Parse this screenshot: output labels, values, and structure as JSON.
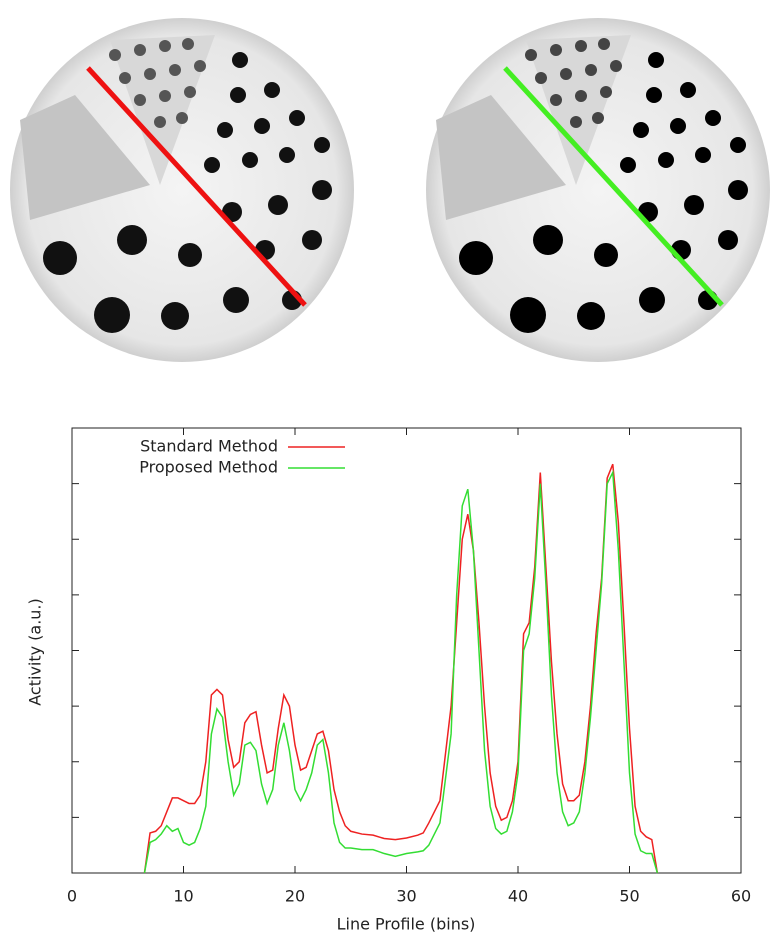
{
  "chart_data": {
    "type": "line",
    "xlabel": "Line Profile (bins)",
    "ylabel": "Activity (a.u.)",
    "xlim": [
      0,
      60
    ],
    "xticks": [
      0,
      10,
      20,
      30,
      40,
      50,
      60
    ],
    "ylim": [
      0,
      8
    ],
    "yticks": [
      1,
      2,
      3,
      4,
      5,
      6,
      7
    ],
    "legend": "top-left",
    "x": [
      6.5,
      7,
      7.5,
      8,
      8.5,
      9,
      9.5,
      10,
      10.5,
      11,
      11.5,
      12,
      12.5,
      13,
      13.5,
      14,
      14.5,
      15,
      15.5,
      16,
      16.5,
      17,
      17.5,
      18,
      18.5,
      19,
      19.5,
      20,
      20.5,
      21,
      21.5,
      22,
      22.5,
      23,
      23.5,
      24,
      24.5,
      25,
      26,
      27,
      28,
      29,
      30,
      31,
      31.5,
      32,
      33,
      34,
      34.5,
      35,
      35.5,
      36,
      36.5,
      37,
      37.5,
      38,
      38.5,
      39,
      39.5,
      40,
      40.5,
      41,
      41.5,
      42,
      42.5,
      43,
      43.5,
      44,
      44.5,
      45,
      45.5,
      46,
      46.5,
      47,
      47.5,
      48,
      48.5,
      49,
      49.5,
      50,
      50.5,
      51,
      51.5,
      52,
      52.5
    ],
    "series": [
      {
        "name": "Standard Method",
        "color": "#ee2222",
        "values": [
          0,
          0.72,
          0.75,
          0.85,
          1.1,
          1.35,
          1.35,
          1.3,
          1.25,
          1.25,
          1.4,
          2.0,
          3.2,
          3.3,
          3.2,
          2.4,
          1.9,
          2.0,
          2.7,
          2.85,
          2.9,
          2.3,
          1.8,
          1.85,
          2.6,
          3.2,
          3.0,
          2.3,
          1.85,
          1.9,
          2.2,
          2.5,
          2.55,
          2.2,
          1.5,
          1.1,
          0.85,
          0.75,
          0.7,
          0.68,
          0.62,
          0.6,
          0.63,
          0.68,
          0.72,
          0.9,
          1.3,
          3.0,
          4.5,
          6.0,
          6.45,
          5.8,
          4.5,
          3.0,
          1.8,
          1.2,
          0.95,
          1.0,
          1.3,
          2.0,
          4.3,
          4.5,
          5.5,
          7.2,
          5.5,
          3.8,
          2.5,
          1.6,
          1.3,
          1.3,
          1.4,
          2.0,
          3.0,
          4.3,
          5.3,
          7.1,
          7.35,
          6.3,
          4.5,
          2.6,
          1.2,
          0.75,
          0.65,
          0.6,
          0
        ]
      },
      {
        "name": "Proposed Method",
        "color": "#33dd33",
        "values": [
          0,
          0.55,
          0.6,
          0.7,
          0.85,
          0.75,
          0.8,
          0.55,
          0.5,
          0.55,
          0.8,
          1.2,
          2.5,
          2.95,
          2.8,
          2.0,
          1.4,
          1.6,
          2.3,
          2.35,
          2.2,
          1.6,
          1.25,
          1.5,
          2.3,
          2.7,
          2.2,
          1.5,
          1.3,
          1.5,
          1.8,
          2.3,
          2.4,
          1.8,
          0.9,
          0.55,
          0.45,
          0.45,
          0.42,
          0.42,
          0.35,
          0.3,
          0.35,
          0.38,
          0.4,
          0.5,
          0.9,
          2.5,
          5.0,
          6.6,
          6.9,
          5.8,
          4.0,
          2.2,
          1.2,
          0.8,
          0.7,
          0.75,
          1.1,
          1.8,
          4.0,
          4.3,
          5.3,
          7.0,
          5.2,
          3.2,
          1.8,
          1.1,
          0.85,
          0.9,
          1.1,
          1.8,
          2.8,
          4.0,
          5.2,
          7.0,
          7.2,
          5.8,
          3.8,
          1.8,
          0.7,
          0.4,
          0.35,
          0.35,
          0
        ]
      }
    ]
  }
}
